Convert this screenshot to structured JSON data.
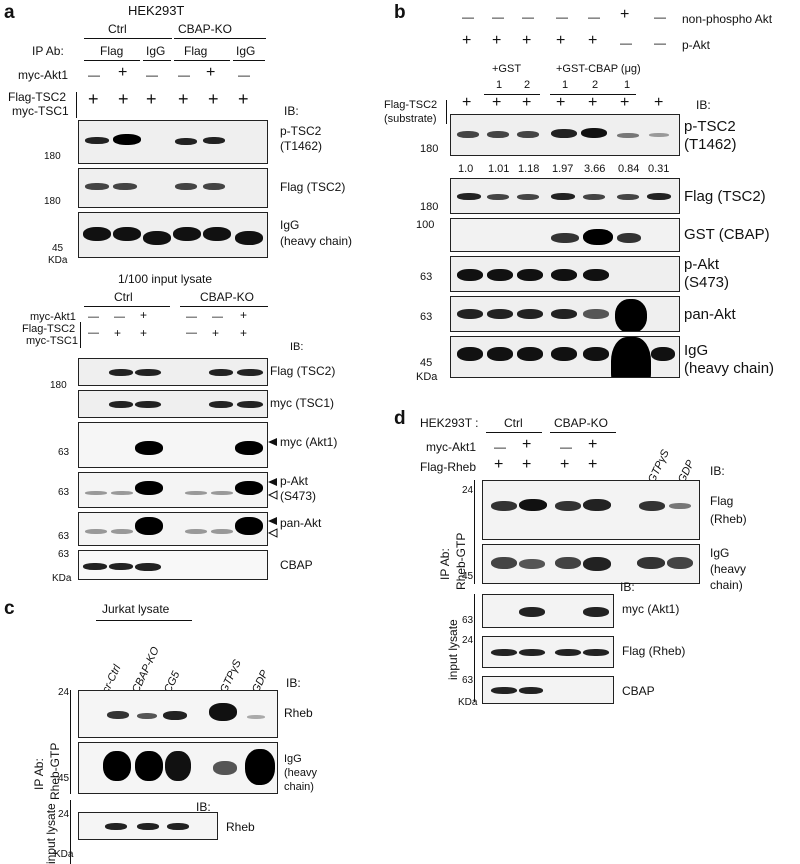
{
  "a": {
    "letter": "a",
    "cell": "HEK293T",
    "group_ctrl": "Ctrl",
    "group_ko": "CBAP-KO",
    "ip_label": "IP Ab:",
    "flag": "Flag",
    "igg": "IgG",
    "myc_akt1": "myc-Akt1",
    "flag_tsc2": "Flag-TSC2",
    "myc_tsc1": "myc-TSC1",
    "minus": "—",
    "plus": "+",
    "ib": "IB:",
    "ptsc2_1": "p-TSC2",
    "ptsc2_2": "(T1462)",
    "flagtsc2": "Flag (TSC2)",
    "igg_1": "IgG",
    "igg_2": "(heavy chain)",
    "mw180": "180",
    "mw45": "45",
    "kda": "KDa",
    "input_label": "1/100 input lysate",
    "in_flag": "Flag (TSC2)",
    "in_myc": "myc (TSC1)",
    "in_mycakt": "myc (Akt1)",
    "in_pakt_1": "p-Akt",
    "in_pakt_2": "(S473)",
    "in_panakt": "pan-Akt",
    "in_cbap": "CBAP",
    "mw63": "63"
  },
  "b": {
    "letter": "b",
    "nonphospho": "non-phospho Akt",
    "pakt": "p-Akt",
    "gst": "+GST",
    "gstcbap": "+GST-CBAP (μg)",
    "n1": "1",
    "n2": "2",
    "flagtsc2_1": "Flag-TSC2",
    "flagtsc2_2": "(substrate)",
    "ib": "IB:",
    "quant": [
      "1.0",
      "1.01",
      "1.18",
      "1.97",
      "3.66",
      "0.84",
      "0.31"
    ],
    "ptsc2_1": "p-TSC2",
    "ptsc2_2": "(T1462)",
    "flagtsc2": "Flag (TSC2)",
    "gstcbap_ib": "GST (CBAP)",
    "pakt_1": "p-Akt",
    "pakt_2": "(S473)",
    "panakt": "pan-Akt",
    "igg_1": "IgG",
    "igg_2": "(heavy chain)",
    "mw180": "180",
    "mw100": "100",
    "mw63": "63",
    "mw45": "45",
    "kda": "KDa"
  },
  "c": {
    "letter": "c",
    "jurkat": "Jurkat lysate",
    "lanes": [
      "cr-Ctrl",
      "CBAP-KO",
      "CG5",
      "GTPγS",
      "GDP"
    ],
    "ib": "IB:",
    "ip_1": "IP Ab:",
    "ip_2": "Rheb-GTP",
    "rheb": "Rheb",
    "igg_1": "IgG",
    "igg_2": "(heavy",
    "igg_3": "chain)",
    "input": "input lysate",
    "mw24": "24",
    "mw45": "45",
    "kda": "KDa"
  },
  "d": {
    "letter": "d",
    "cell": "HEK293T :",
    "ctrl": "Ctrl",
    "ko": "CBAP-KO",
    "myc_akt1": "myc-Akt1",
    "flag_rheb": "Flag-Rheb",
    "gtp": "GTPγS",
    "gdp": "GDP",
    "ib": "IB:",
    "ip_1": "IP Ab:",
    "ip_2": "Rheb-GTP",
    "flag_1": "Flag",
    "flag_2": "(Rheb)",
    "igg_1": "IgG",
    "igg_2": "(heavy",
    "igg_3": "chain)",
    "input": "input lysate",
    "mycakt": "myc (Akt1)",
    "flagrheb": "Flag (Rheb)",
    "cbap": "CBAP",
    "mw24": "24",
    "mw45": "45",
    "mw63": "63",
    "kda": "KDa"
  }
}
